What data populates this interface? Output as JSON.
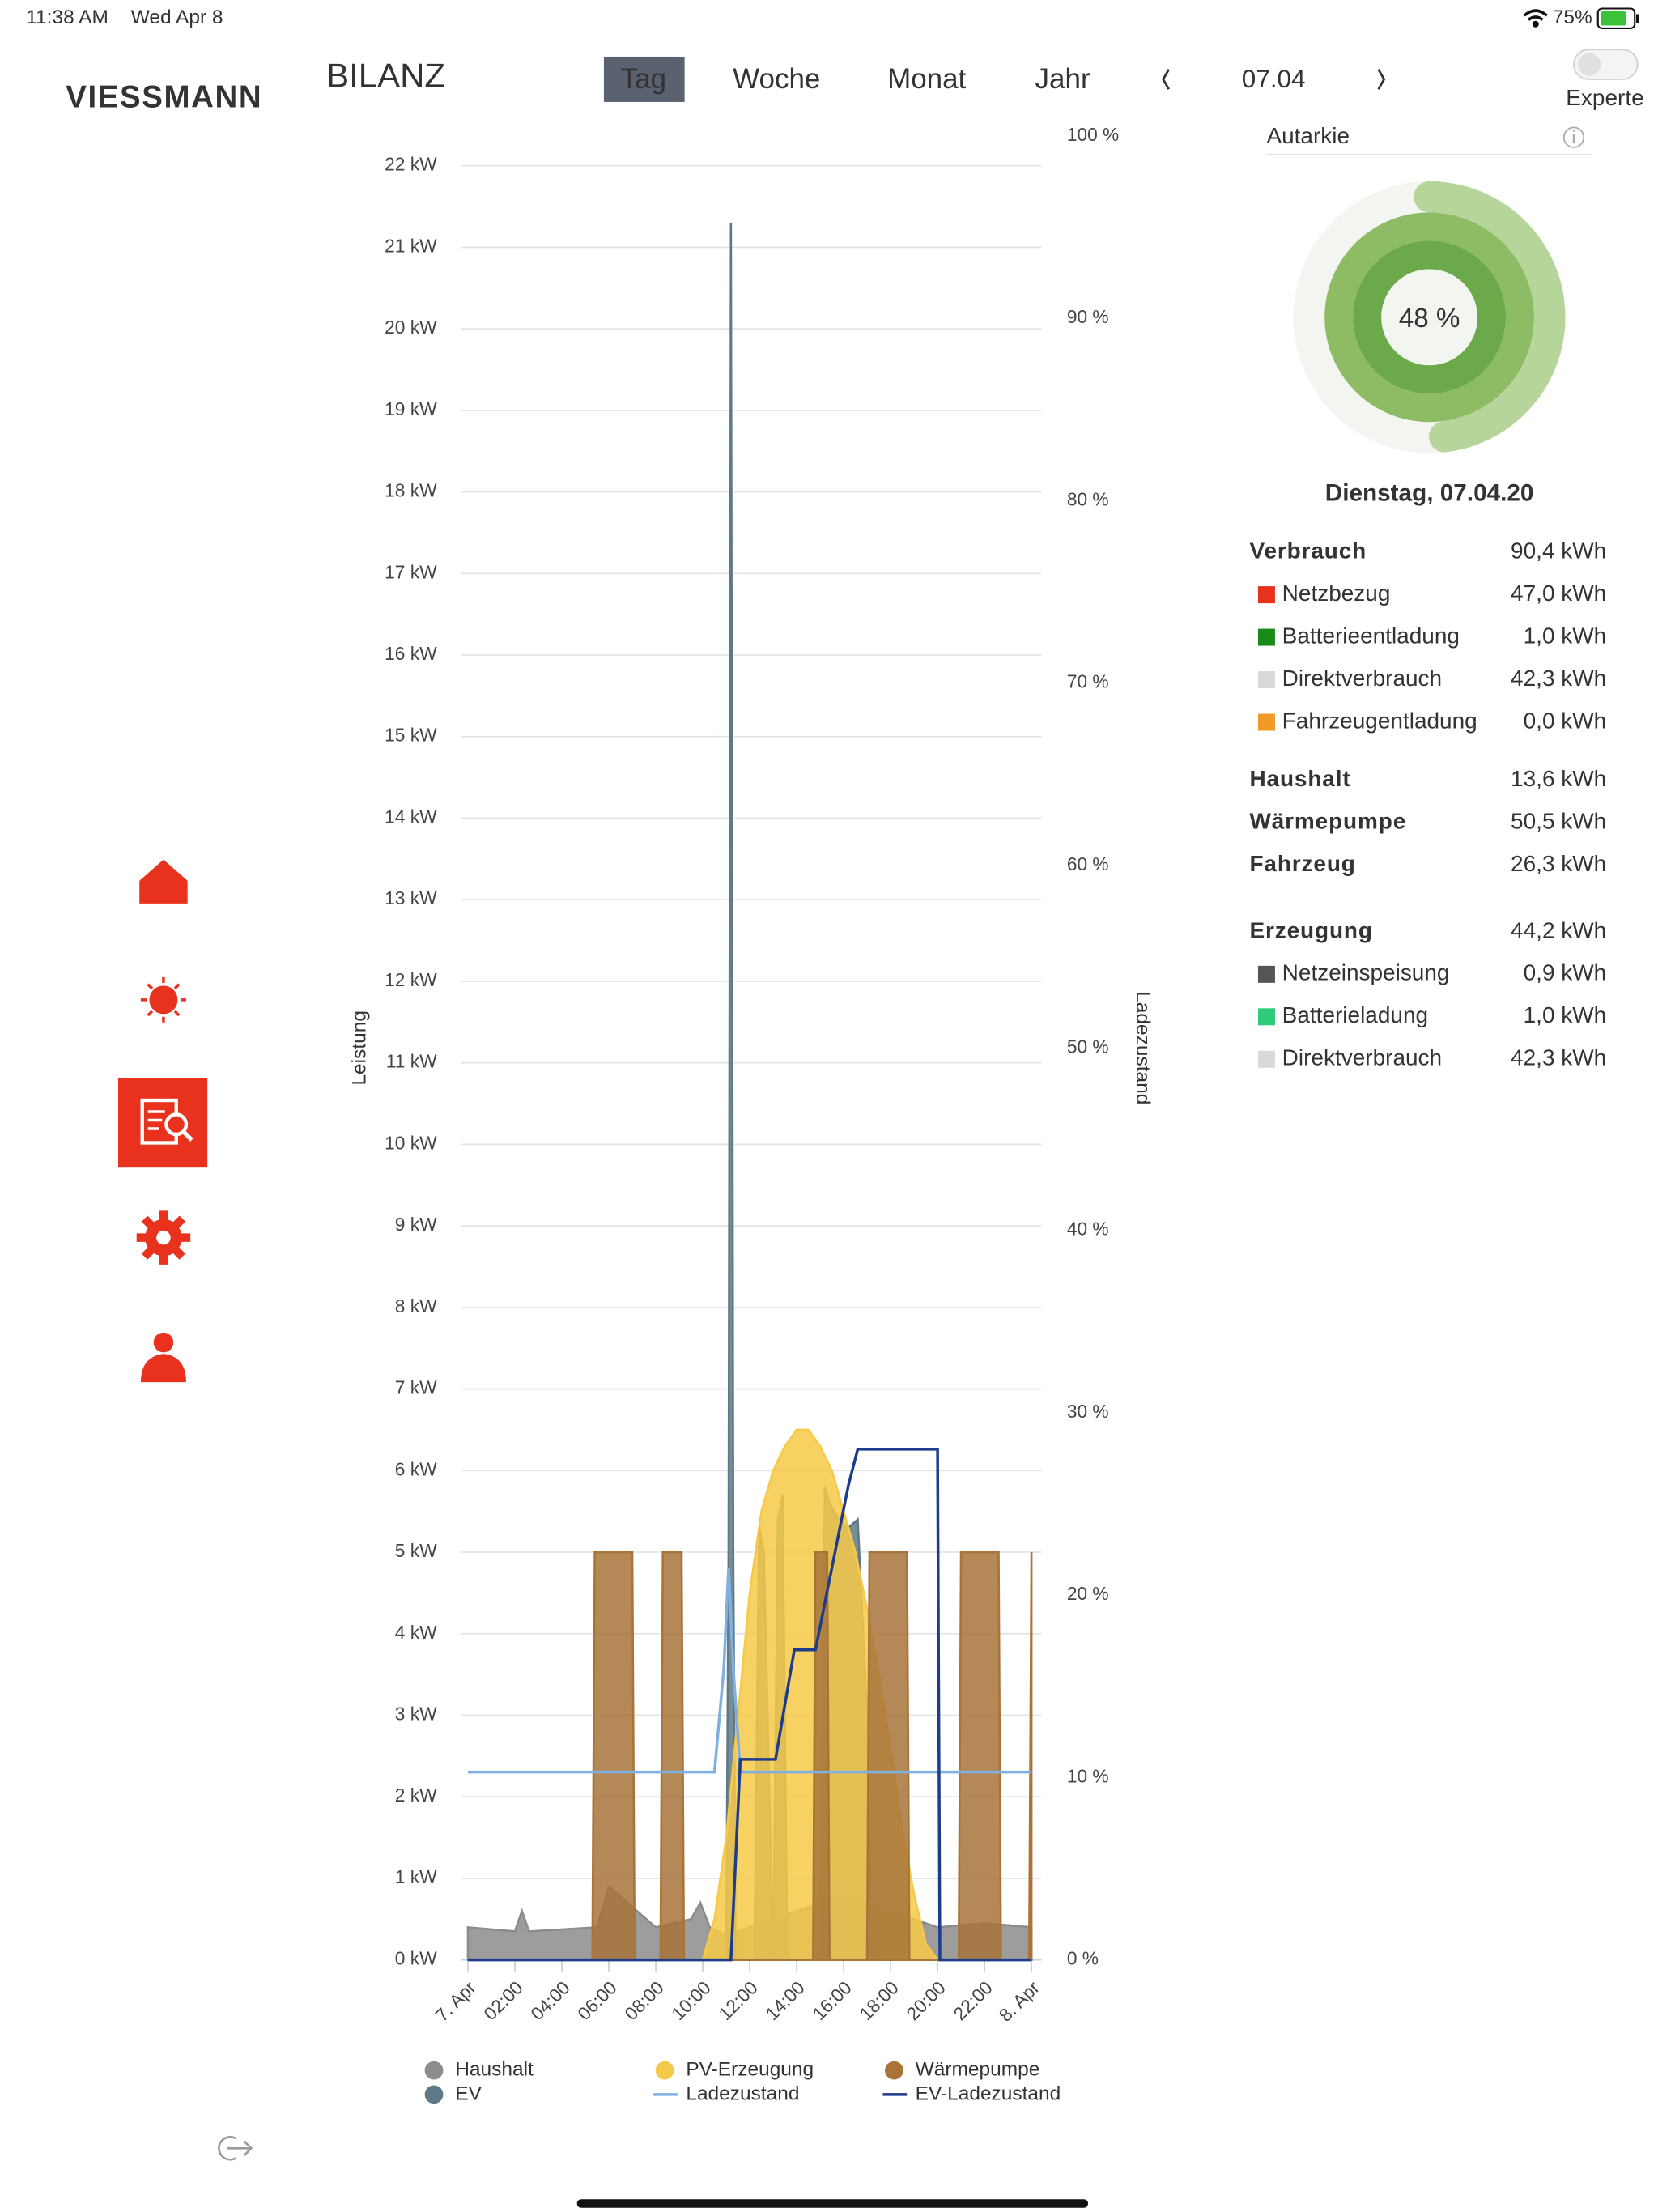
{
  "status_bar": {
    "time": "11:38 AM",
    "date": "Wed Apr 8",
    "battery": "75%"
  },
  "header": {
    "logo": "VIESSMANN",
    "title": "BILANZ",
    "tabs": [
      "Tag",
      "Woche",
      "Monat",
      "Jahr"
    ],
    "active_tab": 0,
    "date": "07.04",
    "toggle_label": "Experte"
  },
  "chart_data": {
    "type": "area",
    "y_label": "Leistung",
    "y2_label": "Ladezustand",
    "xlim": [
      0,
      24
    ],
    "xticks": [
      {
        "value": 0,
        "label": "7. Apr"
      },
      {
        "value": 2,
        "label": "02:00"
      },
      {
        "value": 4,
        "label": "04:00"
      },
      {
        "value": 6,
        "label": "06:00"
      },
      {
        "value": 8,
        "label": "08:00"
      },
      {
        "value": 10,
        "label": "10:00"
      },
      {
        "value": 12,
        "label": "12:00"
      },
      {
        "value": 14,
        "label": "14:00"
      },
      {
        "value": 16,
        "label": "16:00"
      },
      {
        "value": 18,
        "label": "18:00"
      },
      {
        "value": 20,
        "label": "20:00"
      },
      {
        "value": 22,
        "label": "22:00"
      },
      {
        "value": 24,
        "label": "8. Apr"
      }
    ],
    "ylim": [
      0,
      22
    ],
    "yticks": [
      {
        "value": 0,
        "label": "0 kW"
      },
      {
        "value": 1,
        "label": "1 kW"
      },
      {
        "value": 2,
        "label": "2 kW"
      },
      {
        "value": 3,
        "label": "3 kW"
      },
      {
        "value": 4,
        "label": "4 kW"
      },
      {
        "value": 5,
        "label": "5 kW"
      },
      {
        "value": 6,
        "label": "6 kW"
      },
      {
        "value": 7,
        "label": "7 kW"
      },
      {
        "value": 8,
        "label": "8 kW"
      },
      {
        "value": 9,
        "label": "9 kW"
      },
      {
        "value": 10,
        "label": "10 kW"
      },
      {
        "value": 11,
        "label": "11 kW"
      },
      {
        "value": 12,
        "label": "12 kW"
      },
      {
        "value": 13,
        "label": "13 kW"
      },
      {
        "value": 14,
        "label": "14 kW"
      },
      {
        "value": 15,
        "label": "15 kW"
      },
      {
        "value": 16,
        "label": "16 kW"
      },
      {
        "value": 17,
        "label": "17 kW"
      },
      {
        "value": 18,
        "label": "18 kW"
      },
      {
        "value": 19,
        "label": "19 kW"
      },
      {
        "value": 20,
        "label": "20 kW"
      },
      {
        "value": 21,
        "label": "21 kW"
      },
      {
        "value": 22,
        "label": "22 kW"
      }
    ],
    "y2lim": [
      0,
      100
    ],
    "y2ticks": [
      {
        "value": 0,
        "label": "0 %"
      },
      {
        "value": 10,
        "label": "10 %"
      },
      {
        "value": 20,
        "label": "20 %"
      },
      {
        "value": 30,
        "label": "30 %"
      },
      {
        "value": 40,
        "label": "40 %"
      },
      {
        "value": 50,
        "label": "50 %"
      },
      {
        "value": 60,
        "label": "60 %"
      },
      {
        "value": 70,
        "label": "70 %"
      },
      {
        "value": 80,
        "label": "80 %"
      },
      {
        "value": 90,
        "label": "90 %"
      },
      {
        "value": 100,
        "label": "100 %"
      }
    ],
    "grid": true,
    "series": [
      {
        "name": "Haushalt",
        "type": "area",
        "color": "#8c8c8c",
        "x": [
          0,
          2,
          2.3,
          2.6,
          5.5,
          6,
          8,
          9.5,
          9.9,
          10.3,
          11,
          14,
          16,
          20,
          22,
          24
        ],
        "values": [
          0.4,
          0.35,
          0.6,
          0.35,
          0.4,
          0.9,
          0.4,
          0.5,
          0.7,
          0.4,
          0.3,
          0.6,
          0.8,
          0.4,
          0.45,
          0.4
        ]
      },
      {
        "name": "EV",
        "type": "area",
        "color": "#5f7a86",
        "x": [
          0,
          11,
          11.1,
          11.2,
          11.3,
          11.4,
          12.2,
          12.4,
          12.6,
          13,
          13.2,
          13.4,
          13.6,
          15,
          15.2,
          15.4,
          15.8,
          16.2,
          16.6,
          17,
          17.2,
          24
        ],
        "values": [
          0,
          0,
          5,
          21.3,
          5,
          0,
          0,
          5.3,
          5,
          0,
          5.4,
          5.7,
          0,
          0,
          5.8,
          5.6,
          5.4,
          5.3,
          5.4,
          3,
          0,
          0
        ]
      },
      {
        "name": "PV-Erzeugung",
        "type": "area",
        "color": "#f7c948",
        "x": [
          0,
          10,
          10.5,
          11,
          11.5,
          12,
          12.5,
          13,
          13.5,
          14,
          14.5,
          15,
          15.5,
          16,
          16.5,
          17,
          17.5,
          18,
          18.5,
          19,
          19.5,
          20,
          24
        ],
        "values": [
          0,
          0,
          0.5,
          1.5,
          3,
          4.5,
          5.5,
          6,
          6.3,
          6.5,
          6.5,
          6.3,
          6,
          5.5,
          5,
          4.3,
          3.5,
          2.6,
          1.6,
          0.8,
          0.2,
          0,
          0
        ]
      },
      {
        "name": "Ladezustand",
        "type": "line",
        "axis": "y2",
        "color": "#7fb0e0",
        "x": [
          0,
          10.5,
          10.9,
          11.1,
          11.3,
          11.6,
          24
        ],
        "values": [
          10.3,
          10.3,
          16,
          21.5,
          16,
          10.3,
          10.3
        ]
      },
      {
        "name": "Wärmepumpe",
        "type": "area",
        "color": "#a8743a",
        "x": [
          0,
          5.3,
          5.4,
          7,
          7.1,
          8.2,
          8.3,
          9.1,
          9.2,
          14.7,
          14.8,
          15.3,
          15.4,
          17,
          17.1,
          18.7,
          18.8,
          20.9,
          21,
          22.6,
          22.7,
          23.9,
          24
        ],
        "values": [
          0,
          0,
          5,
          5,
          0,
          0,
          5,
          5,
          0,
          0,
          5,
          5,
          0,
          0,
          5,
          5,
          0,
          0,
          5,
          5,
          0,
          0,
          5
        ]
      },
      {
        "name": "EV-Ladezustand",
        "type": "line",
        "axis": "y2",
        "color": "#1d3c8c",
        "x": [
          0,
          11.2,
          11.6,
          13.1,
          13.9,
          14.8,
          16.2,
          16.6,
          20,
          20.1,
          24
        ],
        "values": [
          0,
          0,
          11,
          11,
          17,
          17,
          26,
          28,
          28,
          0,
          0
        ]
      }
    ]
  },
  "autarkie": {
    "label": "Autarkie",
    "value": 48,
    "value_label": "48 %"
  },
  "summary": {
    "date": "Dienstag, 07.04.20",
    "groups": [
      {
        "label": "Verbrauch",
        "value": "90,4 kWh",
        "items": [
          {
            "label": "Netzbezug",
            "value": "47,0 kWh",
            "color": "#e8321e"
          },
          {
            "label": "Batterieentladung",
            "value": "1,0 kWh",
            "color": "#1a8a1a"
          },
          {
            "label": "Direktverbrauch",
            "value": "42,3 kWh",
            "color": "#d9d9d9"
          },
          {
            "label": "Fahrzeugentladung",
            "value": "0,0 kWh",
            "color": "#f09a28"
          }
        ]
      },
      {
        "label": "Haushalt",
        "value": "13,6 kWh",
        "items": []
      },
      {
        "label": "Wärmepumpe",
        "value": "50,5 kWh",
        "items": []
      },
      {
        "label": "Fahrzeug",
        "value": "26,3 kWh",
        "items": []
      },
      {
        "label": "Erzeugung",
        "value": "44,2 kWh",
        "items": [
          {
            "label": "Netzeinspeisung",
            "value": "0,9 kWh",
            "color": "#555555"
          },
          {
            "label": "Batterieladung",
            "value": "1,0 kWh",
            "color": "#2ecc7a"
          },
          {
            "label": "Direktverbrauch",
            "value": "42,3 kWh",
            "color": "#d9d9d9"
          }
        ]
      }
    ]
  }
}
